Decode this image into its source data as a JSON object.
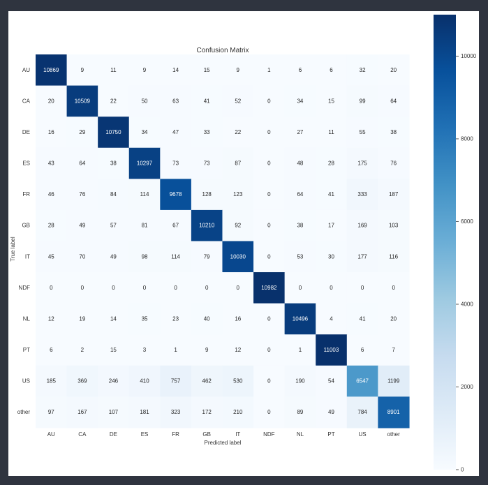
{
  "chart_data": {
    "type": "heatmap",
    "title": "Confusion Matrix",
    "xlabel": "Predicted label",
    "ylabel": "True label",
    "x_categories": [
      "AU",
      "CA",
      "DE",
      "ES",
      "FR",
      "GB",
      "IT",
      "NDF",
      "NL",
      "PT",
      "US",
      "other"
    ],
    "y_categories": [
      "AU",
      "CA",
      "DE",
      "ES",
      "FR",
      "GB",
      "IT",
      "NDF",
      "NL",
      "PT",
      "US",
      "other"
    ],
    "values": [
      [
        10869,
        9,
        11,
        9,
        14,
        15,
        9,
        1,
        6,
        6,
        32,
        20
      ],
      [
        20,
        10509,
        22,
        50,
        63,
        41,
        52,
        0,
        34,
        15,
        99,
        64
      ],
      [
        16,
        29,
        10750,
        34,
        47,
        33,
        22,
        0,
        27,
        11,
        55,
        38
      ],
      [
        43,
        64,
        38,
        10297,
        73,
        73,
        87,
        0,
        48,
        28,
        175,
        76
      ],
      [
        46,
        76,
        84,
        114,
        9678,
        128,
        123,
        0,
        64,
        41,
        333,
        187
      ],
      [
        28,
        49,
        57,
        81,
        67,
        10210,
        92,
        0,
        38,
        17,
        169,
        103
      ],
      [
        45,
        70,
        49,
        98,
        114,
        79,
        10030,
        0,
        53,
        30,
        177,
        116
      ],
      [
        0,
        0,
        0,
        0,
        0,
        0,
        0,
        10982,
        0,
        0,
        0,
        0
      ],
      [
        12,
        19,
        14,
        35,
        23,
        40,
        16,
        0,
        10496,
        4,
        41,
        20
      ],
      [
        6,
        2,
        15,
        3,
        1,
        9,
        12,
        0,
        1,
        11003,
        6,
        7
      ],
      [
        185,
        369,
        246,
        410,
        757,
        462,
        530,
        0,
        190,
        54,
        6547,
        1199
      ],
      [
        97,
        167,
        107,
        181,
        323,
        172,
        210,
        0,
        89,
        49,
        784,
        8901
      ]
    ],
    "colormap": "Blues",
    "color_range": [
      0,
      11003
    ],
    "colorbar_ticks": [
      0,
      2000,
      4000,
      6000,
      8000,
      10000
    ],
    "grid": false
  }
}
